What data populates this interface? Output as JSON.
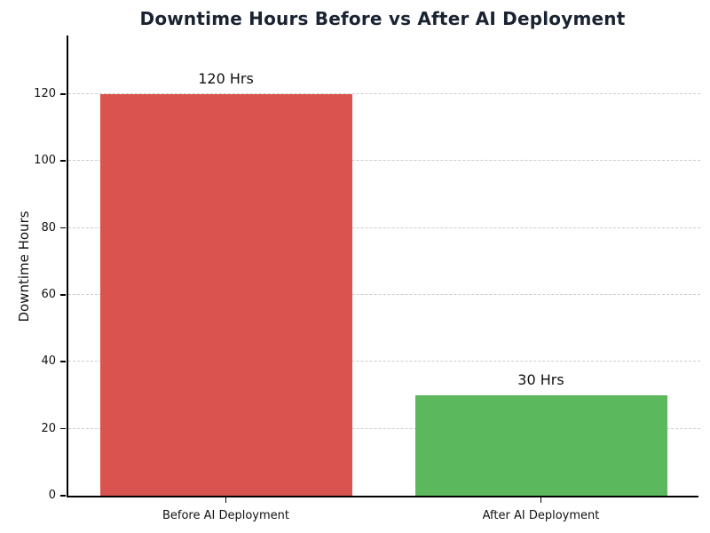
{
  "chart_data": {
    "type": "bar",
    "title": "Downtime Hours Before vs After AI Deployment",
    "ylabel": "Downtime Hours",
    "xlabel": "",
    "categories": [
      "Before AI Deployment",
      "After AI Deployment"
    ],
    "values": [
      120,
      30
    ],
    "bar_labels": [
      "120 Hrs",
      "30 Hrs"
    ],
    "bar_colors": [
      "#d9534f",
      "#5cb85c"
    ],
    "yticks": [
      0,
      20,
      40,
      60,
      80,
      100,
      120
    ],
    "ylim": [
      0,
      137.5
    ],
    "grid": "horizontal-dashed",
    "grid_color": "#cccccc",
    "legend": "none",
    "title_color": "#1a2332",
    "axis_color": "#000000",
    "background_color": "#ffffff"
  }
}
